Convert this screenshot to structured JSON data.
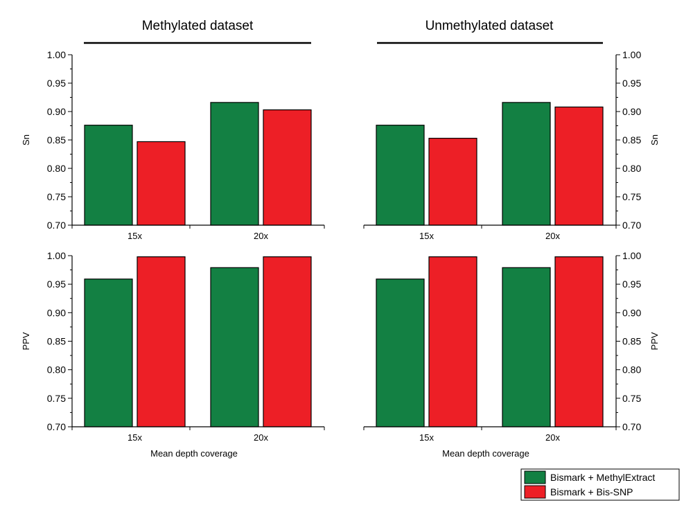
{
  "column_titles": [
    "Methylated dataset",
    "Unmethylated dataset"
  ],
  "legend": {
    "placement": "bottom-right",
    "items": [
      {
        "label": "Bismark + MethylExtract",
        "color": "#138043"
      },
      {
        "label": "Bismark + Bis-SNP",
        "color": "#ed1f26"
      }
    ]
  },
  "colors": {
    "series1": "#138043",
    "series2": "#ed1f26"
  },
  "chart_data": [
    {
      "type": "bar",
      "panel": "Methylated dataset / Sn",
      "categories": [
        "15x",
        "20x"
      ],
      "series": [
        {
          "name": "Bismark + MethylExtract",
          "values": [
            0.876,
            0.916
          ]
        },
        {
          "name": "Bismark + Bis-SNP",
          "values": [
            0.847,
            0.903
          ]
        }
      ],
      "xlabel": "",
      "ylabel": "Sn",
      "ylim": [
        0.7,
        1.0
      ],
      "yticks": [
        "0.70",
        "0.75",
        "0.80",
        "0.85",
        "0.90",
        "0.95",
        "1.00"
      ],
      "y_axis_side": "left",
      "grid": false
    },
    {
      "type": "bar",
      "panel": "Unmethylated dataset / Sn",
      "categories": [
        "15x",
        "20x"
      ],
      "series": [
        {
          "name": "Bismark + MethylExtract",
          "values": [
            0.876,
            0.916
          ]
        },
        {
          "name": "Bismark + Bis-SNP",
          "values": [
            0.853,
            0.908
          ]
        }
      ],
      "xlabel": "",
      "ylabel": "Sn",
      "ylim": [
        0.7,
        1.0
      ],
      "yticks": [
        "0.70",
        "0.75",
        "0.80",
        "0.85",
        "0.90",
        "0.95",
        "1.00"
      ],
      "y_axis_side": "right",
      "grid": false
    },
    {
      "type": "bar",
      "panel": "Methylated dataset / PPV",
      "categories": [
        "15x",
        "20x"
      ],
      "series": [
        {
          "name": "Bismark + MethylExtract",
          "values": [
            0.959,
            0.979
          ]
        },
        {
          "name": "Bismark + Bis-SNP",
          "values": [
            0.998,
            0.998
          ]
        }
      ],
      "xlabel": "Mean depth coverage",
      "ylabel": "PPV",
      "ylim": [
        0.7,
        1.0
      ],
      "yticks": [
        "0.70",
        "0.75",
        "0.80",
        "0.85",
        "0.90",
        "0.95",
        "1.00"
      ],
      "y_axis_side": "left",
      "grid": false
    },
    {
      "type": "bar",
      "panel": "Unmethylated dataset / PPV",
      "categories": [
        "15x",
        "20x"
      ],
      "series": [
        {
          "name": "Bismark + MethylExtract",
          "values": [
            0.959,
            0.979
          ]
        },
        {
          "name": "Bismark + Bis-SNP",
          "values": [
            0.998,
            0.998
          ]
        }
      ],
      "xlabel": "Mean depth coverage",
      "ylabel": "PPV",
      "ylim": [
        0.7,
        1.0
      ],
      "yticks": [
        "0.70",
        "0.75",
        "0.80",
        "0.85",
        "0.90",
        "0.95",
        "1.00"
      ],
      "y_axis_side": "right",
      "grid": false
    }
  ]
}
